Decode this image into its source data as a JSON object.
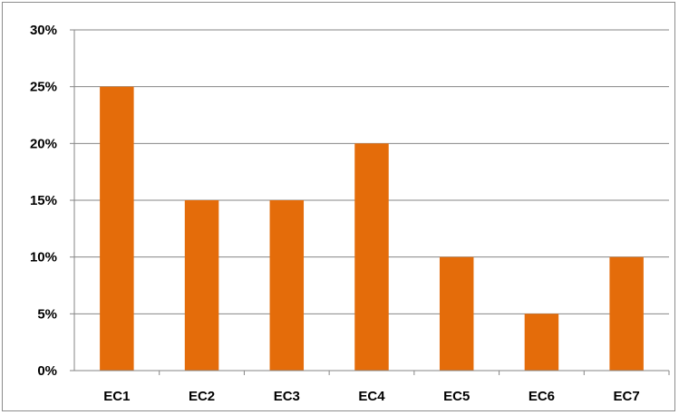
{
  "chart_data": {
    "type": "bar",
    "title": "",
    "xlabel": "",
    "ylabel": "",
    "categories": [
      "EC1",
      "EC2",
      "EC3",
      "EC4",
      "EC5",
      "EC6",
      "EC7"
    ],
    "values": [
      25,
      15,
      15,
      20,
      10,
      5,
      10
    ],
    "y_unit": "%",
    "ylim": [
      0,
      30
    ],
    "yticks": [
      "0%",
      "5%",
      "10%",
      "15%",
      "20%",
      "25%",
      "30%"
    ],
    "grid": true,
    "legend": "none",
    "bar_color": "#E46C0A",
    "grid_color": "#868686"
  }
}
